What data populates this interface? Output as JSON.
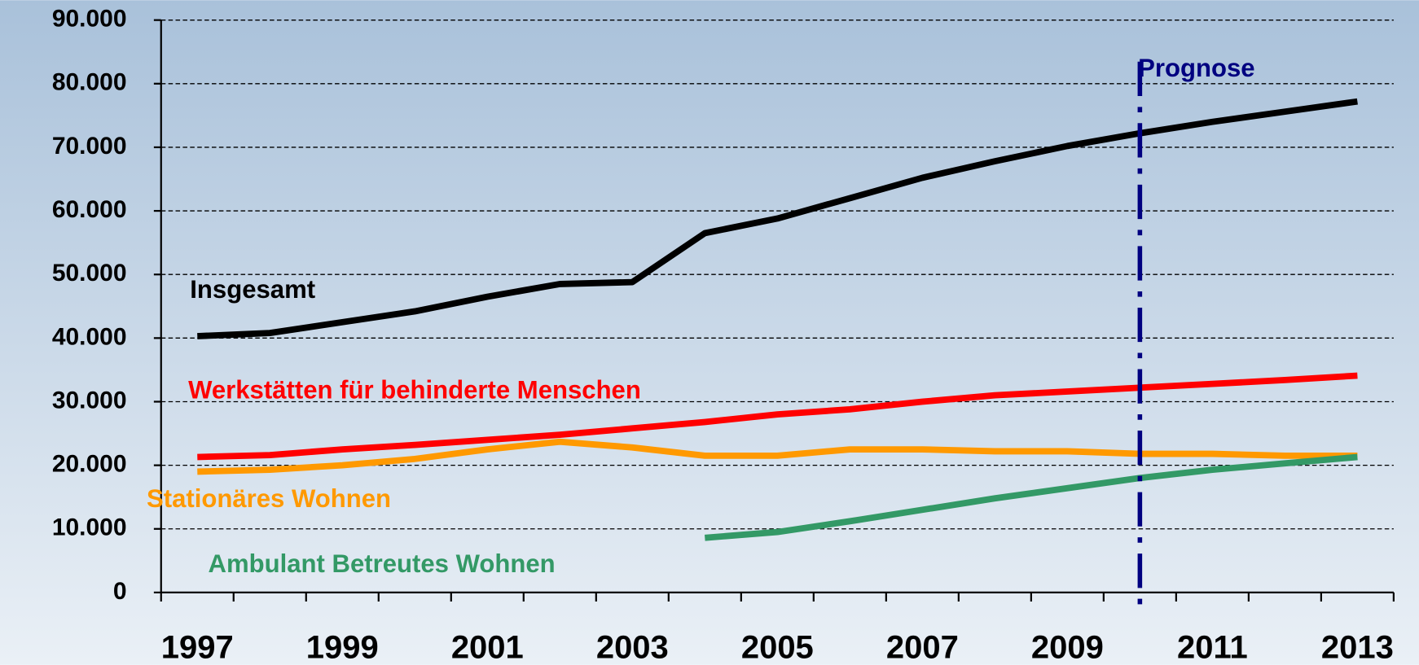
{
  "chart_data": {
    "type": "line",
    "categories": [
      "1997",
      null,
      "1999",
      null,
      "2001",
      null,
      "2003",
      null,
      "2005",
      null,
      "2007",
      null,
      "2009",
      null,
      "2011",
      null,
      "2013"
    ],
    "series": [
      {
        "name": "Insgesamt",
        "color": "#000000",
        "values": [
          40300,
          40800,
          42500,
          44200,
          46500,
          48500,
          48800,
          56500,
          58800,
          62000,
          65200,
          67800,
          70200,
          72200,
          74000,
          75600,
          77200
        ]
      },
      {
        "name": "Werkstätten für behinderte Menschen",
        "color": "#ff0000",
        "values": [
          21300,
          21600,
          22500,
          23200,
          24000,
          24800,
          25800,
          26800,
          28000,
          28800,
          30000,
          31000,
          31600,
          32200,
          32800,
          33400,
          34100
        ]
      },
      {
        "name": "Stationäres Wohnen",
        "color": "#ff9900",
        "values": [
          19000,
          19300,
          20000,
          21000,
          22500,
          23700,
          22800,
          21500,
          21500,
          22500,
          22500,
          22200,
          22200,
          21800,
          21800,
          21500,
          21500
        ]
      },
      {
        "name": "Ambulant Betreutes Wohnen",
        "color": "#339966",
        "values": [
          null,
          null,
          null,
          null,
          null,
          null,
          null,
          8600,
          9500,
          11200,
          13000,
          14800,
          16400,
          18000,
          19300,
          20300,
          21300
        ]
      }
    ],
    "ylim": [
      0,
      90000
    ],
    "yticks": [
      0,
      {
        "value": 10000,
        "label": "10.000"
      },
      {
        "value": 20000,
        "label": "20.000"
      },
      {
        "value": 30000,
        "label": "30.000"
      },
      {
        "value": 40000,
        "label": "40.000"
      },
      {
        "value": 50000,
        "label": "50.000"
      },
      {
        "value": 60000,
        "label": "60.000"
      },
      {
        "value": 70000,
        "label": "70.000"
      },
      {
        "value": 80000,
        "label": "80.000"
      },
      {
        "value": 90000,
        "label": "90.000"
      }
    ],
    "grid": true,
    "forecast": {
      "label": "Prognose",
      "category_index": 13,
      "color": "#000080"
    }
  }
}
